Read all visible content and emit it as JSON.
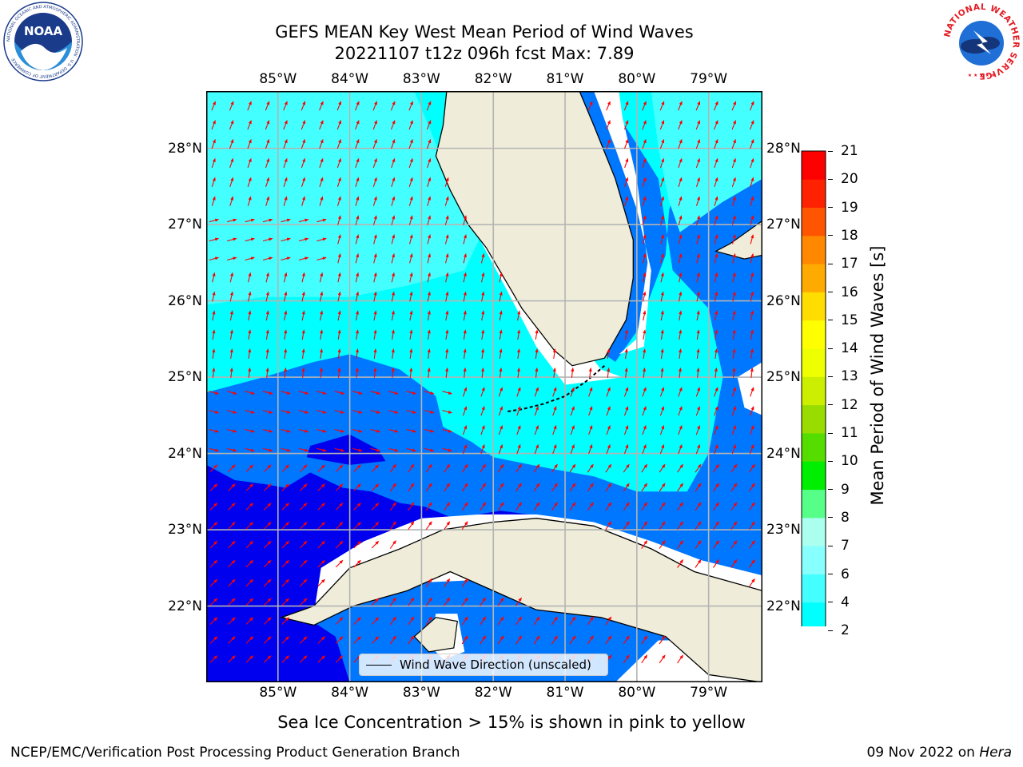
{
  "title": {
    "line1": "GEFS MEAN Key West Mean Period of Wind Waves",
    "line2": "20221107 t12z 096h fcst   Max: 7.89"
  },
  "logos": {
    "left": "NOAA",
    "left_ring": "NATIONAL OCEANIC AND ATMOSPHERIC ADMINISTRATION · U.S. DEPARTMENT OF COMMERCE",
    "right_ring": "NATIONAL WEATHER SERVICE"
  },
  "map": {
    "lon_ticks": [
      "85°W",
      "84°W",
      "83°W",
      "82°W",
      "81°W",
      "80°W",
      "79°W"
    ],
    "lat_ticks": [
      "28°N",
      "27°N",
      "26°N",
      "25°N",
      "24°N",
      "23°N",
      "22°N"
    ],
    "lon_range": [
      -86.0,
      -78.25
    ],
    "lat_range": [
      21.0,
      28.75
    ],
    "legend": "Wind Wave Direction (unscaled)",
    "land_color": "#efedd9",
    "arrow_color": "#ff0000",
    "grid": true
  },
  "colorbar": {
    "label": "Mean Period of Wind Waves [s]",
    "ticks": [
      "21",
      "20",
      "19",
      "18",
      "17",
      "16",
      "15",
      "14",
      "13",
      "12",
      "11",
      "10",
      "9",
      "8",
      "7",
      "6",
      "4",
      "2"
    ],
    "colors": [
      "#0000ff",
      "#0077ff",
      "#00ffff",
      "#44ffff",
      "#88ffff",
      "#aaffee",
      "#55ff88",
      "#00ee00",
      "#55dd00",
      "#99dd00",
      "#ccee00",
      "#eeff00",
      "#ffff00",
      "#ffdd00",
      "#ffaa00",
      "#ff8800",
      "#ff5500",
      "#ff2200",
      "#ff0000"
    ],
    "underflow_color": "#0000ee"
  },
  "note": "Sea Ice Concentration > 15% is shown in pink to yellow",
  "footer": {
    "left": "NCEP/EMC/Verification Post Processing Product Generation Branch",
    "date": "09 Nov 2022 on ",
    "host": "Hera"
  }
}
